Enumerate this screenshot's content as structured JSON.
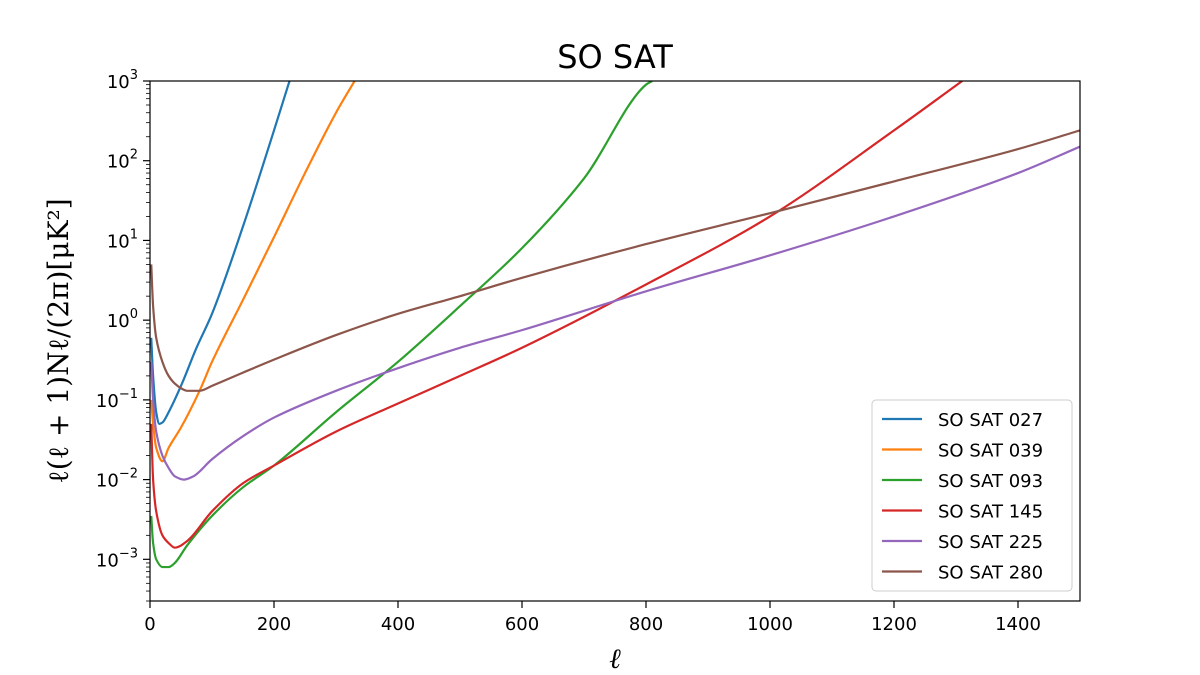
{
  "chart_data": {
    "type": "line",
    "title": "SO SAT",
    "xlabel": "ℓ",
    "ylabel": "ℓ(ℓ + 1)Nℓ/(2π)[μK²]",
    "xlim": [
      0,
      1500
    ],
    "ylim": [
      0.0003,
      1000
    ],
    "yscale": "log",
    "grid": false,
    "legend_position": "lower right",
    "x_ticks": [
      0,
      200,
      400,
      600,
      800,
      1000,
      1200,
      1400
    ],
    "y_ticks": [
      {
        "value": 0.001,
        "base": "10",
        "exp": "−3"
      },
      {
        "value": 0.01,
        "base": "10",
        "exp": "−2"
      },
      {
        "value": 0.1,
        "base": "10",
        "exp": "−1"
      },
      {
        "value": 1,
        "base": "10",
        "exp": "0"
      },
      {
        "value": 10,
        "base": "10",
        "exp": "1"
      },
      {
        "value": 100,
        "base": "10",
        "exp": "2"
      },
      {
        "value": 1000,
        "base": "10",
        "exp": "3"
      }
    ],
    "series": [
      {
        "name": "SO SAT 027",
        "color": "#1f77b4",
        "x": [
          2,
          5,
          10,
          15,
          20,
          30,
          50,
          75,
          100,
          150,
          200,
          225
        ],
        "y": [
          0.6,
          0.2,
          0.07,
          0.05,
          0.052,
          0.07,
          0.15,
          0.45,
          1.2,
          15,
          240,
          1000
        ]
      },
      {
        "name": "SO SAT 039",
        "color": "#ff7f0e",
        "x": [
          2,
          5,
          10,
          20,
          30,
          50,
          80,
          100,
          150,
          200,
          250,
          300,
          330
        ],
        "y": [
          0.1,
          0.05,
          0.025,
          0.017,
          0.025,
          0.045,
          0.13,
          0.3,
          1.8,
          11,
          70,
          400,
          1000
        ]
      },
      {
        "name": "SO SAT 093",
        "color": "#2ca02c",
        "x": [
          2,
          5,
          10,
          20,
          30,
          40,
          60,
          100,
          150,
          200,
          300,
          400,
          500,
          600,
          700,
          800,
          810
        ],
        "y": [
          0.0035,
          0.0016,
          0.001,
          0.0008,
          0.0008,
          0.0009,
          0.0015,
          0.0035,
          0.008,
          0.015,
          0.07,
          0.3,
          1.5,
          8,
          60,
          900,
          1000
        ]
      },
      {
        "name": "SO SAT 145",
        "color": "#d62728",
        "x": [
          2,
          5,
          10,
          20,
          30,
          40,
          60,
          100,
          150,
          200,
          300,
          400,
          500,
          600,
          800,
          1000,
          1200,
          1310
        ],
        "y": [
          0.05,
          0.01,
          0.004,
          0.002,
          0.0016,
          0.0014,
          0.0017,
          0.004,
          0.009,
          0.015,
          0.04,
          0.09,
          0.2,
          0.45,
          2.8,
          20,
          240,
          1000
        ]
      },
      {
        "name": "SO SAT 225",
        "color": "#9467bd",
        "x": [
          2,
          5,
          10,
          20,
          30,
          40,
          55,
          70,
          100,
          150,
          200,
          300,
          400,
          500,
          600,
          800,
          1000,
          1200,
          1400,
          1500
        ],
        "y": [
          0.3,
          0.1,
          0.04,
          0.02,
          0.014,
          0.011,
          0.01,
          0.011,
          0.018,
          0.035,
          0.06,
          0.13,
          0.25,
          0.45,
          0.75,
          2.3,
          6.5,
          20,
          70,
          150
        ]
      },
      {
        "name": "SO SAT 280",
        "color": "#8c564b",
        "x": [
          2,
          5,
          10,
          20,
          30,
          40,
          50,
          60,
          80,
          100,
          150,
          200,
          300,
          400,
          500,
          600,
          800,
          1000,
          1200,
          1400,
          1500
        ],
        "y": [
          5,
          1.5,
          0.6,
          0.3,
          0.2,
          0.16,
          0.14,
          0.13,
          0.13,
          0.15,
          0.22,
          0.32,
          0.65,
          1.2,
          2,
          3.4,
          9,
          22,
          55,
          140,
          240
        ]
      }
    ]
  }
}
